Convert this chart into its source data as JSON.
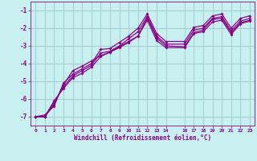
{
  "xlabel": "Windchill (Refroidissement éolien,°C)",
  "bg_color": "#c8f0f0",
  "grid_color": "#a0d0d0",
  "line_color": "#880088",
  "ylim": [
    -7.5,
    -0.5
  ],
  "xlim": [
    -0.5,
    23.5
  ],
  "yticks": [
    -7,
    -6,
    -5,
    -4,
    -3,
    -2,
    -1
  ],
  "xticks": [
    0,
    1,
    2,
    3,
    4,
    5,
    6,
    7,
    8,
    9,
    10,
    11,
    12,
    13,
    14,
    16,
    17,
    18,
    19,
    20,
    21,
    22,
    23
  ],
  "x": [
    0,
    1,
    2,
    3,
    4,
    5,
    6,
    7,
    8,
    9,
    10,
    11,
    12,
    13,
    14,
    16,
    17,
    18,
    19,
    20,
    21,
    22,
    23
  ],
  "series": [
    [
      -7.0,
      -7.0,
      -6.3,
      -5.2,
      -4.4,
      -4.15,
      -3.85,
      -3.55,
      -3.35,
      -3.05,
      -2.75,
      -2.45,
      -1.4,
      -2.55,
      -3.0,
      -3.05,
      -2.25,
      -2.1,
      -1.5,
      -1.45,
      -2.25,
      -1.7,
      -1.55
    ],
    [
      -7.0,
      -7.0,
      -6.1,
      -5.4,
      -4.8,
      -4.55,
      -4.2,
      -3.6,
      -3.35,
      -3.1,
      -2.8,
      -2.45,
      -1.55,
      -2.7,
      -3.1,
      -3.1,
      -2.3,
      -2.2,
      -1.65,
      -1.55,
      -2.35,
      -1.75,
      -1.6
    ],
    [
      -7.0,
      -7.0,
      -6.2,
      -5.3,
      -4.7,
      -4.4,
      -4.1,
      -3.4,
      -3.3,
      -3.0,
      -2.6,
      -2.2,
      -1.35,
      -2.45,
      -2.9,
      -2.9,
      -2.1,
      -2.0,
      -1.45,
      -1.35,
      -2.15,
      -1.6,
      -1.45
    ],
    [
      -7.0,
      -6.9,
      -6.4,
      -5.1,
      -4.6,
      -4.3,
      -4.0,
      -3.2,
      -3.15,
      -2.8,
      -2.45,
      -2.0,
      -1.2,
      -2.3,
      -2.75,
      -2.75,
      -1.95,
      -1.85,
      -1.3,
      -1.2,
      -2.0,
      -1.45,
      -1.3
    ]
  ]
}
